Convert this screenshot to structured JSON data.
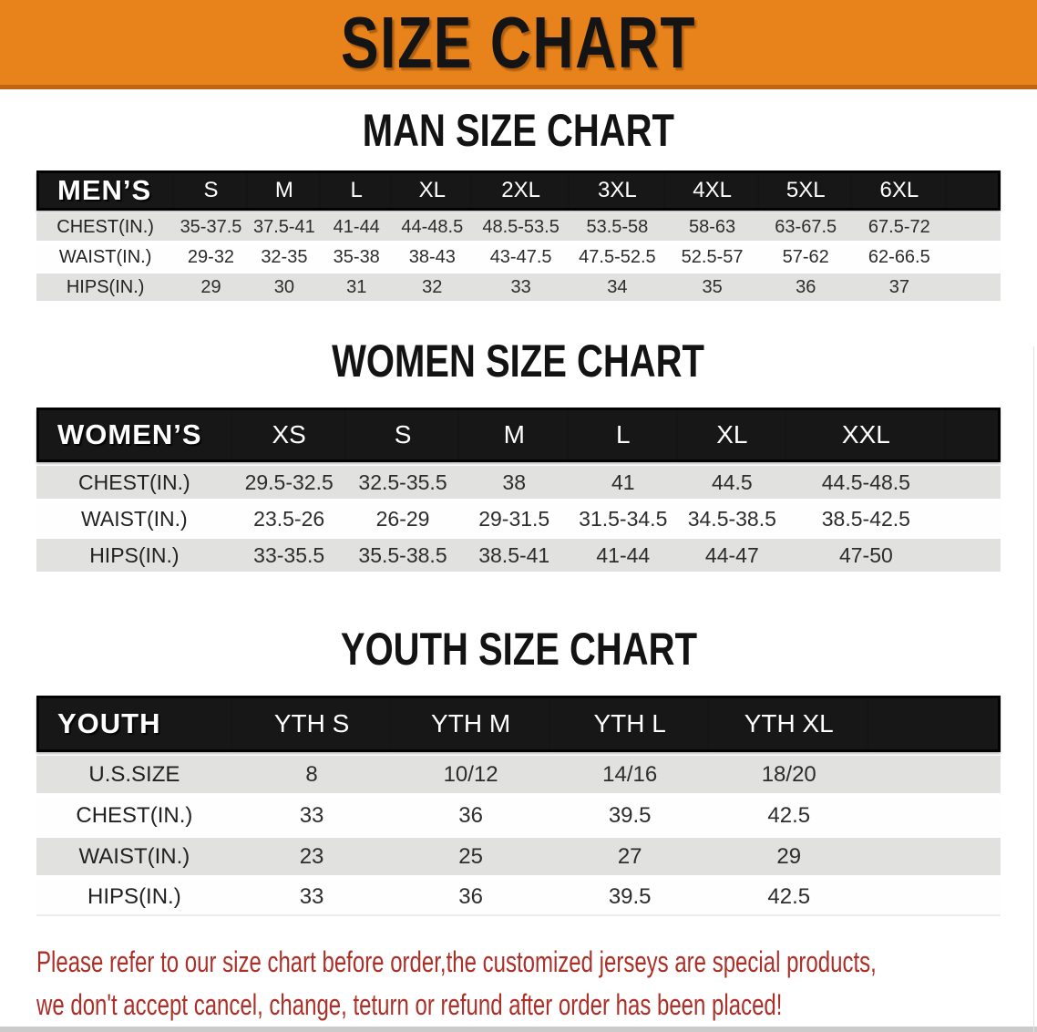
{
  "banner": {
    "title": "SIZE CHART"
  },
  "sections": [
    {
      "heading": "MAN SIZE CHART",
      "table": {
        "corner_label": "MEN’S",
        "columns": [
          "S",
          "M",
          "L",
          "XL",
          "2XL",
          "3XL",
          "4XL",
          "5XL",
          "6XL"
        ],
        "rows": [
          {
            "label": "CHEST(IN.)",
            "values": [
              "35-37.5",
              "37.5-41",
              "41-44",
              "44-48.5",
              "48.5-53.5",
              "53.5-58",
              "58-63",
              "63-67.5",
              "67.5-72"
            ]
          },
          {
            "label": "WAIST(IN.)",
            "values": [
              "29-32",
              "32-35",
              "35-38",
              "38-43",
              "43-47.5",
              "47.5-52.5",
              "52.5-57",
              "57-62",
              "62-66.5"
            ]
          },
          {
            "label": "HIPS(IN.)",
            "values": [
              "29",
              "30",
              "31",
              "32",
              "33",
              "34",
              "35",
              "36",
              "37"
            ]
          }
        ]
      }
    },
    {
      "heading": "WOMEN SIZE CHART",
      "table": {
        "corner_label": "WOMEN’S",
        "columns": [
          "XS",
          "S",
          "M",
          "L",
          "XL",
          "XXL"
        ],
        "rows": [
          {
            "label": "CHEST(IN.)",
            "values": [
              "29.5-32.5",
              "32.5-35.5",
              "38",
              "41",
              "44.5",
              "44.5-48.5"
            ]
          },
          {
            "label": "WAIST(IN.)",
            "values": [
              "23.5-26",
              "26-29",
              "29-31.5",
              "31.5-34.5",
              "34.5-38.5",
              "38.5-42.5"
            ]
          },
          {
            "label": "HIPS(IN.)",
            "values": [
              "33-35.5",
              "35.5-38.5",
              "38.5-41",
              "41-44",
              "44-47",
              "47-50"
            ]
          }
        ]
      }
    },
    {
      "heading": "YOUTH SIZE CHART",
      "table": {
        "corner_label": "YOUTH",
        "columns": [
          "YTH S",
          "YTH M",
          "YTH L",
          "YTH XL"
        ],
        "rows": [
          {
            "label": "U.S.SIZE",
            "values": [
              "8",
              "10/12",
              "14/16",
              "18/20"
            ]
          },
          {
            "label": "CHEST(IN.)",
            "values": [
              "33",
              "36",
              "39.5",
              "42.5"
            ]
          },
          {
            "label": "WAIST(IN.)",
            "values": [
              "23",
              "25",
              "27",
              "29"
            ]
          },
          {
            "label": "HIPS(IN.)",
            "values": [
              "33",
              "36",
              "39.5",
              "42.5"
            ]
          }
        ]
      }
    }
  ],
  "footer": {
    "line1": "Please refer to our size chart before order,the customized jerseys are special products,",
    "line2": "we don't accept cancel, change, teturn or refund after order has been placed!"
  },
  "colors": {
    "banner_orange": "#E8831C",
    "header_black": "#171717",
    "stripe_gray": "#E1E1DF",
    "note_red": "#AC2F28"
  }
}
